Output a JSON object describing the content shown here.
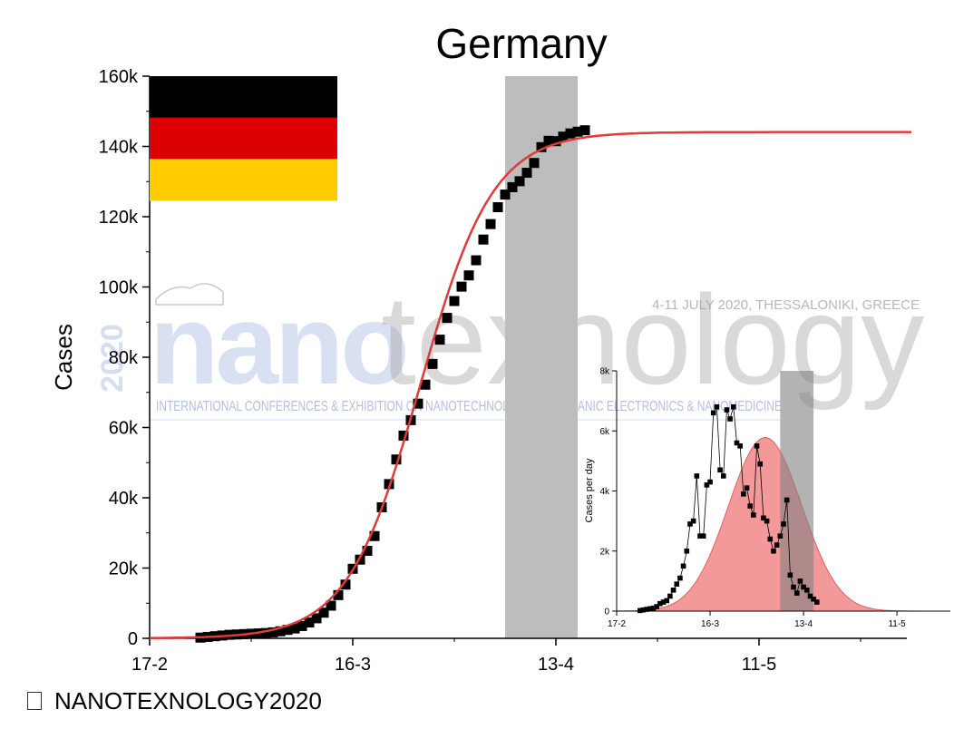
{
  "footer": {
    "text": "NANOTEXNOLOGY2020"
  },
  "watermark": {
    "big_left": "nano",
    "big_right": "texnology",
    "year": "2020",
    "dates": "4-11 JULY 2020, THESSALONIKI, GREECE",
    "subtitle": "INTERNATIONAL CONFERENCES & EXHIBITION ON NANOTECHNOLOGIES - ORGANIC ELECTRONICS & NANOMEDICINE"
  },
  "colors": {
    "fit_line": "#e03a3a",
    "points": "#000000",
    "shade": "#bdbdbd",
    "inset_fill": "#f08080",
    "flag": [
      "#000000",
      "#dd0000",
      "#ffcc00"
    ]
  },
  "chart_data": [
    {
      "type": "scatter",
      "title": "Germany",
      "ylabel": "Cases",
      "xlabel": "",
      "x_ticks": [
        {
          "day": 0,
          "label": "17-2"
        },
        {
          "day": 28,
          "label": "16-3"
        },
        {
          "day": 56,
          "label": "13-4"
        },
        {
          "day": 84,
          "label": "11-5"
        }
      ],
      "y_ticks": [
        {
          "value": 0,
          "label": "0"
        },
        {
          "value": 20000,
          "label": "20k"
        },
        {
          "value": 40000,
          "label": "40k"
        },
        {
          "value": 60000,
          "label": "60k"
        },
        {
          "value": 80000,
          "label": "80k"
        },
        {
          "value": 100000,
          "label": "100k"
        },
        {
          "value": 120000,
          "label": "120k"
        },
        {
          "value": 140000,
          "label": "140k"
        },
        {
          "value": 160000,
          "label": "160k"
        }
      ],
      "xlim": [
        0,
        105
      ],
      "ylim": [
        0,
        160000
      ],
      "shaded_region": [
        49,
        59
      ],
      "series": [
        {
          "kind": "points",
          "days": [
            7,
            8,
            9,
            10,
            11,
            12,
            13,
            14,
            15,
            16,
            17,
            18,
            19,
            20,
            21,
            22,
            23,
            24,
            25,
            26,
            27,
            28,
            29,
            30,
            31,
            32,
            33,
            34,
            35,
            36,
            37,
            38,
            39,
            40,
            41,
            42,
            43,
            44,
            45,
            46,
            47,
            48,
            49,
            50,
            51,
            52,
            53,
            54,
            55,
            56,
            57,
            58,
            59,
            60
          ],
          "values": [
            200,
            400,
            600,
            800,
            1000,
            1100,
            1200,
            1300,
            1400,
            1500,
            1700,
            2000,
            2400,
            2800,
            3500,
            4500,
            5700,
            7300,
            9300,
            12300,
            15300,
            19800,
            22400,
            24900,
            29100,
            37300,
            43900,
            50900,
            57700,
            62100,
            66800,
            72200,
            78100,
            85000,
            91200,
            96000,
            100100,
            103300,
            107600,
            113500,
            117900,
            122700,
            126300,
            128400,
            130100,
            132500,
            135300,
            139800,
            141600,
            141500,
            142800,
            143700,
            144200,
            144600
          ]
        },
        {
          "kind": "fit",
          "model": "logistic",
          "K": 144100,
          "x0": 37.3,
          "k": 0.1998
        }
      ]
    },
    {
      "type": "line",
      "title": "",
      "ylabel": "Cases per day",
      "xlabel": "",
      "x_ticks": [
        {
          "day": 0,
          "label": "17-2"
        },
        {
          "day": 28,
          "label": "16-3"
        },
        {
          "day": 56,
          "label": "13-4"
        },
        {
          "day": 84,
          "label": "11-5"
        }
      ],
      "y_ticks": [
        {
          "value": 0,
          "label": "0"
        },
        {
          "value": 2000,
          "label": "2k"
        },
        {
          "value": 4000,
          "label": "4k"
        },
        {
          "value": 6000,
          "label": "6k"
        },
        {
          "value": 8000,
          "label": "8k"
        }
      ],
      "xlim": [
        0,
        100
      ],
      "ylim": [
        0,
        8000
      ],
      "shaded_region": [
        49,
        59
      ],
      "series": [
        {
          "kind": "points",
          "days": [
            7,
            8,
            9,
            10,
            11,
            12,
            13,
            14,
            15,
            16,
            17,
            18,
            19,
            20,
            21,
            22,
            23,
            24,
            25,
            26,
            27,
            28,
            29,
            30,
            31,
            32,
            33,
            34,
            35,
            36,
            37,
            38,
            39,
            40,
            41,
            42,
            43,
            44,
            45,
            46,
            47,
            48,
            49,
            50,
            51,
            52,
            53,
            54,
            55,
            56,
            57,
            58,
            59,
            60
          ],
          "values": [
            20,
            40,
            60,
            80,
            100,
            150,
            250,
            300,
            350,
            500,
            700,
            900,
            1100,
            1500,
            2000,
            2900,
            3000,
            4500,
            2500,
            2500,
            4200,
            4300,
            6600,
            6800,
            4700,
            4500,
            6700,
            6400,
            6800,
            5600,
            5500,
            3900,
            4100,
            3500,
            3200,
            5500,
            4900,
            3100,
            3000,
            2400,
            2000,
            2200,
            2500,
            2900,
            3700,
            1200,
            800,
            600,
            1000,
            800,
            700,
            500,
            400,
            300
          ]
        },
        {
          "kind": "fit",
          "model": "gaussian",
          "amplitude": 5780,
          "center": 44.5,
          "sigma": 11
        }
      ]
    }
  ]
}
